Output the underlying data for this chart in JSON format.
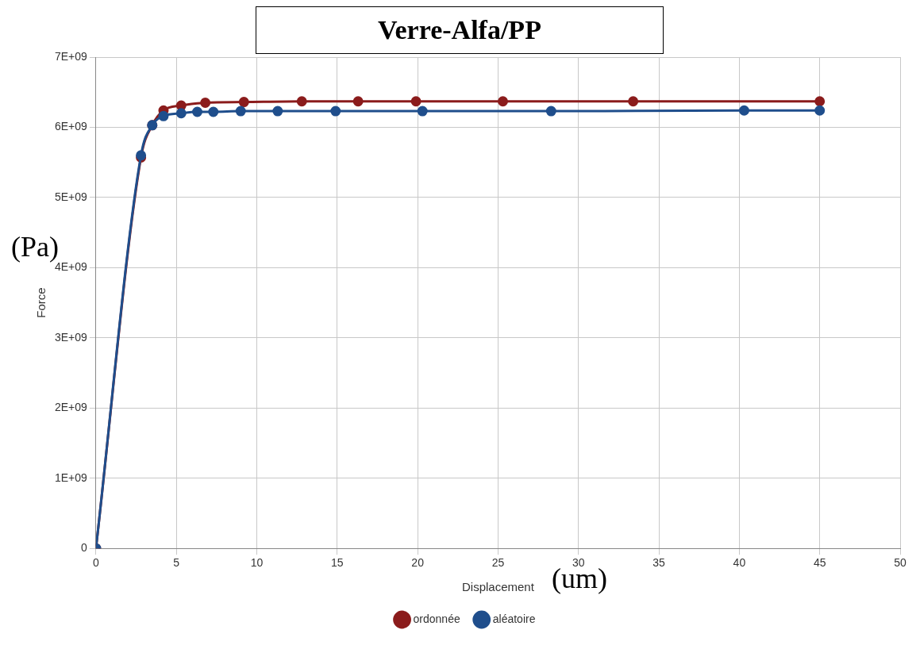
{
  "chart_data": {
    "type": "line",
    "title": "Verre-Alfa/PP",
    "xlabel": "Displacement",
    "ylabel": "Force",
    "annotations": [
      "(Pa)",
      "(um)"
    ],
    "series": [
      {
        "name": "ordonnée",
        "color": "#8b1c1c",
        "x": [
          0,
          2.8,
          3.5,
          4.2,
          5.3,
          6.8,
          9.2,
          12.8,
          16.3,
          19.9,
          25.3,
          33.4,
          45
        ],
        "values": [
          0,
          5570000000.0,
          6030000000.0,
          6240000000.0,
          6310000000.0,
          6350000000.0,
          6360000000.0,
          6370000000.0,
          6370000000.0,
          6370000000.0,
          6370000000.0,
          6370000000.0,
          6370000000.0
        ]
      },
      {
        "name": "aléatoire",
        "color": "#1f4e8c",
        "x": [
          0,
          2.8,
          3.5,
          4.2,
          5.3,
          6.3,
          7.3,
          9.0,
          11.3,
          14.9,
          20.3,
          28.3,
          40.3,
          45
        ],
        "values": [
          0,
          5600000000.0,
          6030000000.0,
          6160000000.0,
          6200000000.0,
          6220000000.0,
          6220000000.0,
          6230000000.0,
          6230000000.0,
          6230000000.0,
          6230000000.0,
          6230000000.0,
          6240000000.0,
          6240000000.0
        ]
      }
    ],
    "xlim": [
      0,
      50
    ],
    "xticks": [
      0,
      5,
      10,
      15,
      20,
      25,
      30,
      35,
      40,
      45,
      50
    ],
    "ylim": [
      0,
      7000000000.0
    ],
    "yticks": [
      0,
      {
        "value": 1000000000.0,
        "label": "1E+09"
      },
      {
        "value": 2000000000.0,
        "label": "2E+09"
      },
      {
        "value": 3000000000.0,
        "label": "3E+09"
      },
      {
        "value": 4000000000.0,
        "label": "4E+09"
      },
      {
        "value": 5000000000.0,
        "label": "5E+09"
      },
      {
        "value": 6000000000.0,
        "label": "6E+09"
      },
      {
        "value": 7000000000.0,
        "label": "7E+09"
      }
    ],
    "grid": true,
    "legend": "bottom",
    "marker": "circle",
    "line_style": "solid"
  }
}
